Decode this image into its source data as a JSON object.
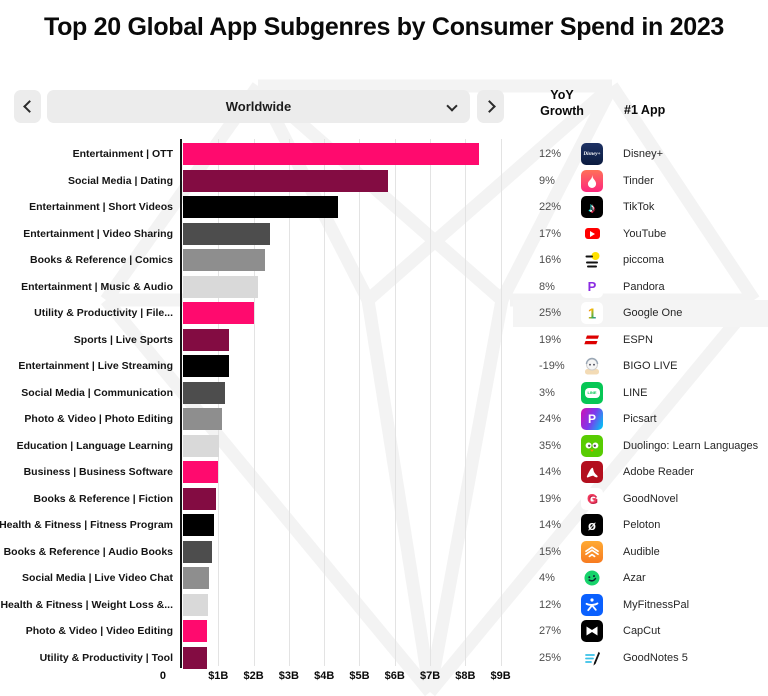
{
  "title": "Top 20 Global App Subgenres by Consumer Spend in 2023",
  "controls": {
    "prev_icon": "chevron-left",
    "next_icon": "chevron-right",
    "region_selector": {
      "value": "Worldwide",
      "caret_icon": "chevron-down"
    }
  },
  "columns": {
    "yoy_line1": "YoY",
    "yoy_line2": "Growth",
    "top_app": "#1 App"
  },
  "axis": {
    "zero_label": "0",
    "ticks": [
      "$1B",
      "$2B",
      "$3B",
      "$4B",
      "$5B",
      "$6B",
      "$7B",
      "$8B",
      "$9B"
    ]
  },
  "palette": {
    "pink": "#FF0A6E",
    "maroon": "#830C42",
    "black": "#000000",
    "dark_gray": "#4D4D4D",
    "gray": "#8E8E8E",
    "light_gray": "#D9D9D9",
    "highlight_row_bg": "#F4F4F4"
  },
  "chart_data": {
    "type": "bar",
    "orientation": "horizontal",
    "title": "Top 20 Global App Subgenres by Consumer Spend in 2023",
    "xlabel": "",
    "ylabel": "",
    "unit": "USD billions",
    "xlim": [
      0,
      9.35
    ],
    "grid": true,
    "tick_labels": [
      "0",
      "$1B",
      "$2B",
      "$3B",
      "$4B",
      "$5B",
      "$6B",
      "$7B",
      "$8B",
      "$9B"
    ],
    "categories": [
      "Entertainment | OTT",
      "Social Media | Dating",
      "Entertainment | Short Videos",
      "Entertainment | Video Sharing",
      "Books & Reference | Comics",
      "Entertainment | Music & Audio",
      "Utility & Productivity | File...",
      "Sports | Live Sports",
      "Entertainment | Live Streaming",
      "Social Media | Communication",
      "Photo & Video | Photo Editing",
      "Education | Language Learning",
      "Business | Business Software",
      "Books & Reference | Fiction",
      "Health & Fitness | Fitness Program",
      "Books & Reference | Audio Books",
      "Social Media | Live Video Chat",
      "Health & Fitness | Weight Loss &...",
      "Photo & Video | Video Editing",
      "Utility & Productivity | Tool"
    ],
    "values": [
      8.3,
      5.75,
      4.35,
      2.45,
      2.3,
      2.1,
      2.0,
      1.3,
      1.28,
      1.18,
      1.1,
      1.0,
      0.97,
      0.94,
      0.88,
      0.82,
      0.74,
      0.69,
      0.68,
      0.66
    ],
    "yoy_growth": [
      "12%",
      "9%",
      "22%",
      "17%",
      "16%",
      "8%",
      "25%",
      "19%",
      "-19%",
      "3%",
      "24%",
      "35%",
      "14%",
      "19%",
      "14%",
      "15%",
      "4%",
      "12%",
      "27%",
      "25%"
    ],
    "top_apps": [
      "Disney+",
      "Tinder",
      "TikTok",
      "YouTube",
      "piccoma",
      "Pandora",
      "Google One",
      "ESPN",
      "BIGO LIVE",
      "LINE",
      "Picsart",
      "Duolingo: Learn Languages",
      "Adobe Reader",
      "GoodNovel",
      "Peloton",
      "Audible",
      "Azar",
      "MyFitnessPal",
      "CapCut",
      "GoodNotes 5"
    ]
  },
  "rows": [
    {
      "label": "Entertainment | OTT",
      "value_b": 8.3,
      "color": "#FF0A6E",
      "yoy": "12%",
      "app": "Disney+",
      "icon": "disney-plus",
      "highlighted": false
    },
    {
      "label": "Social Media | Dating",
      "value_b": 5.75,
      "color": "#830C42",
      "yoy": "9%",
      "app": "Tinder",
      "icon": "tinder",
      "highlighted": false
    },
    {
      "label": "Entertainment | Short Videos",
      "value_b": 4.35,
      "color": "#000000",
      "yoy": "22%",
      "app": "TikTok",
      "icon": "tiktok",
      "highlighted": false
    },
    {
      "label": "Entertainment | Video Sharing",
      "value_b": 2.45,
      "color": "#4D4D4D",
      "yoy": "17%",
      "app": "YouTube",
      "icon": "youtube",
      "highlighted": false
    },
    {
      "label": "Books & Reference | Comics",
      "value_b": 2.3,
      "color": "#8E8E8E",
      "yoy": "16%",
      "app": "piccoma",
      "icon": "piccoma",
      "highlighted": false
    },
    {
      "label": "Entertainment | Music & Audio",
      "value_b": 2.1,
      "color": "#D9D9D9",
      "yoy": "8%",
      "app": "Pandora",
      "icon": "pandora",
      "highlighted": false
    },
    {
      "label": "Utility & Productivity | File...",
      "value_b": 2.0,
      "color": "#FF0A6E",
      "yoy": "25%",
      "app": "Google One",
      "icon": "google-one",
      "highlighted": true
    },
    {
      "label": "Sports | Live Sports",
      "value_b": 1.3,
      "color": "#830C42",
      "yoy": "19%",
      "app": "ESPN",
      "icon": "espn",
      "highlighted": false
    },
    {
      "label": "Entertainment | Live Streaming",
      "value_b": 1.28,
      "color": "#000000",
      "yoy": "-19%",
      "app": "BIGO LIVE",
      "icon": "bigo-live",
      "highlighted": false
    },
    {
      "label": "Social Media | Communication",
      "value_b": 1.18,
      "color": "#4D4D4D",
      "yoy": "3%",
      "app": "LINE",
      "icon": "line",
      "highlighted": false
    },
    {
      "label": "Photo & Video | Photo Editing",
      "value_b": 1.1,
      "color": "#8E8E8E",
      "yoy": "24%",
      "app": "Picsart",
      "icon": "picsart",
      "highlighted": false
    },
    {
      "label": "Education | Language Learning",
      "value_b": 1.0,
      "color": "#D9D9D9",
      "yoy": "35%",
      "app": "Duolingo: Learn Languages",
      "icon": "duolingo",
      "highlighted": false
    },
    {
      "label": "Business | Business Software",
      "value_b": 0.97,
      "color": "#FF0A6E",
      "yoy": "14%",
      "app": "Adobe Reader",
      "icon": "adobe-reader",
      "highlighted": false
    },
    {
      "label": "Books & Reference | Fiction",
      "value_b": 0.94,
      "color": "#830C42",
      "yoy": "19%",
      "app": "GoodNovel",
      "icon": "goodnovel",
      "highlighted": false
    },
    {
      "label": "Health & Fitness | Fitness Program",
      "value_b": 0.88,
      "color": "#000000",
      "yoy": "14%",
      "app": "Peloton",
      "icon": "peloton",
      "highlighted": false
    },
    {
      "label": "Books & Reference | Audio Books",
      "value_b": 0.82,
      "color": "#4D4D4D",
      "yoy": "15%",
      "app": "Audible",
      "icon": "audible",
      "highlighted": false
    },
    {
      "label": "Social Media | Live Video Chat",
      "value_b": 0.74,
      "color": "#8E8E8E",
      "yoy": "4%",
      "app": "Azar",
      "icon": "azar",
      "highlighted": false
    },
    {
      "label": "Health & Fitness | Weight Loss &...",
      "value_b": 0.69,
      "color": "#D9D9D9",
      "yoy": "12%",
      "app": "MyFitnessPal",
      "icon": "myfitnesspal",
      "highlighted": false
    },
    {
      "label": "Photo & Video | Video Editing",
      "value_b": 0.68,
      "color": "#FF0A6E",
      "yoy": "27%",
      "app": "CapCut",
      "icon": "capcut",
      "highlighted": false
    },
    {
      "label": "Utility & Productivity | Tool",
      "value_b": 0.66,
      "color": "#830C42",
      "yoy": "25%",
      "app": "GoodNotes 5",
      "icon": "goodnotes-5",
      "highlighted": false
    }
  ]
}
